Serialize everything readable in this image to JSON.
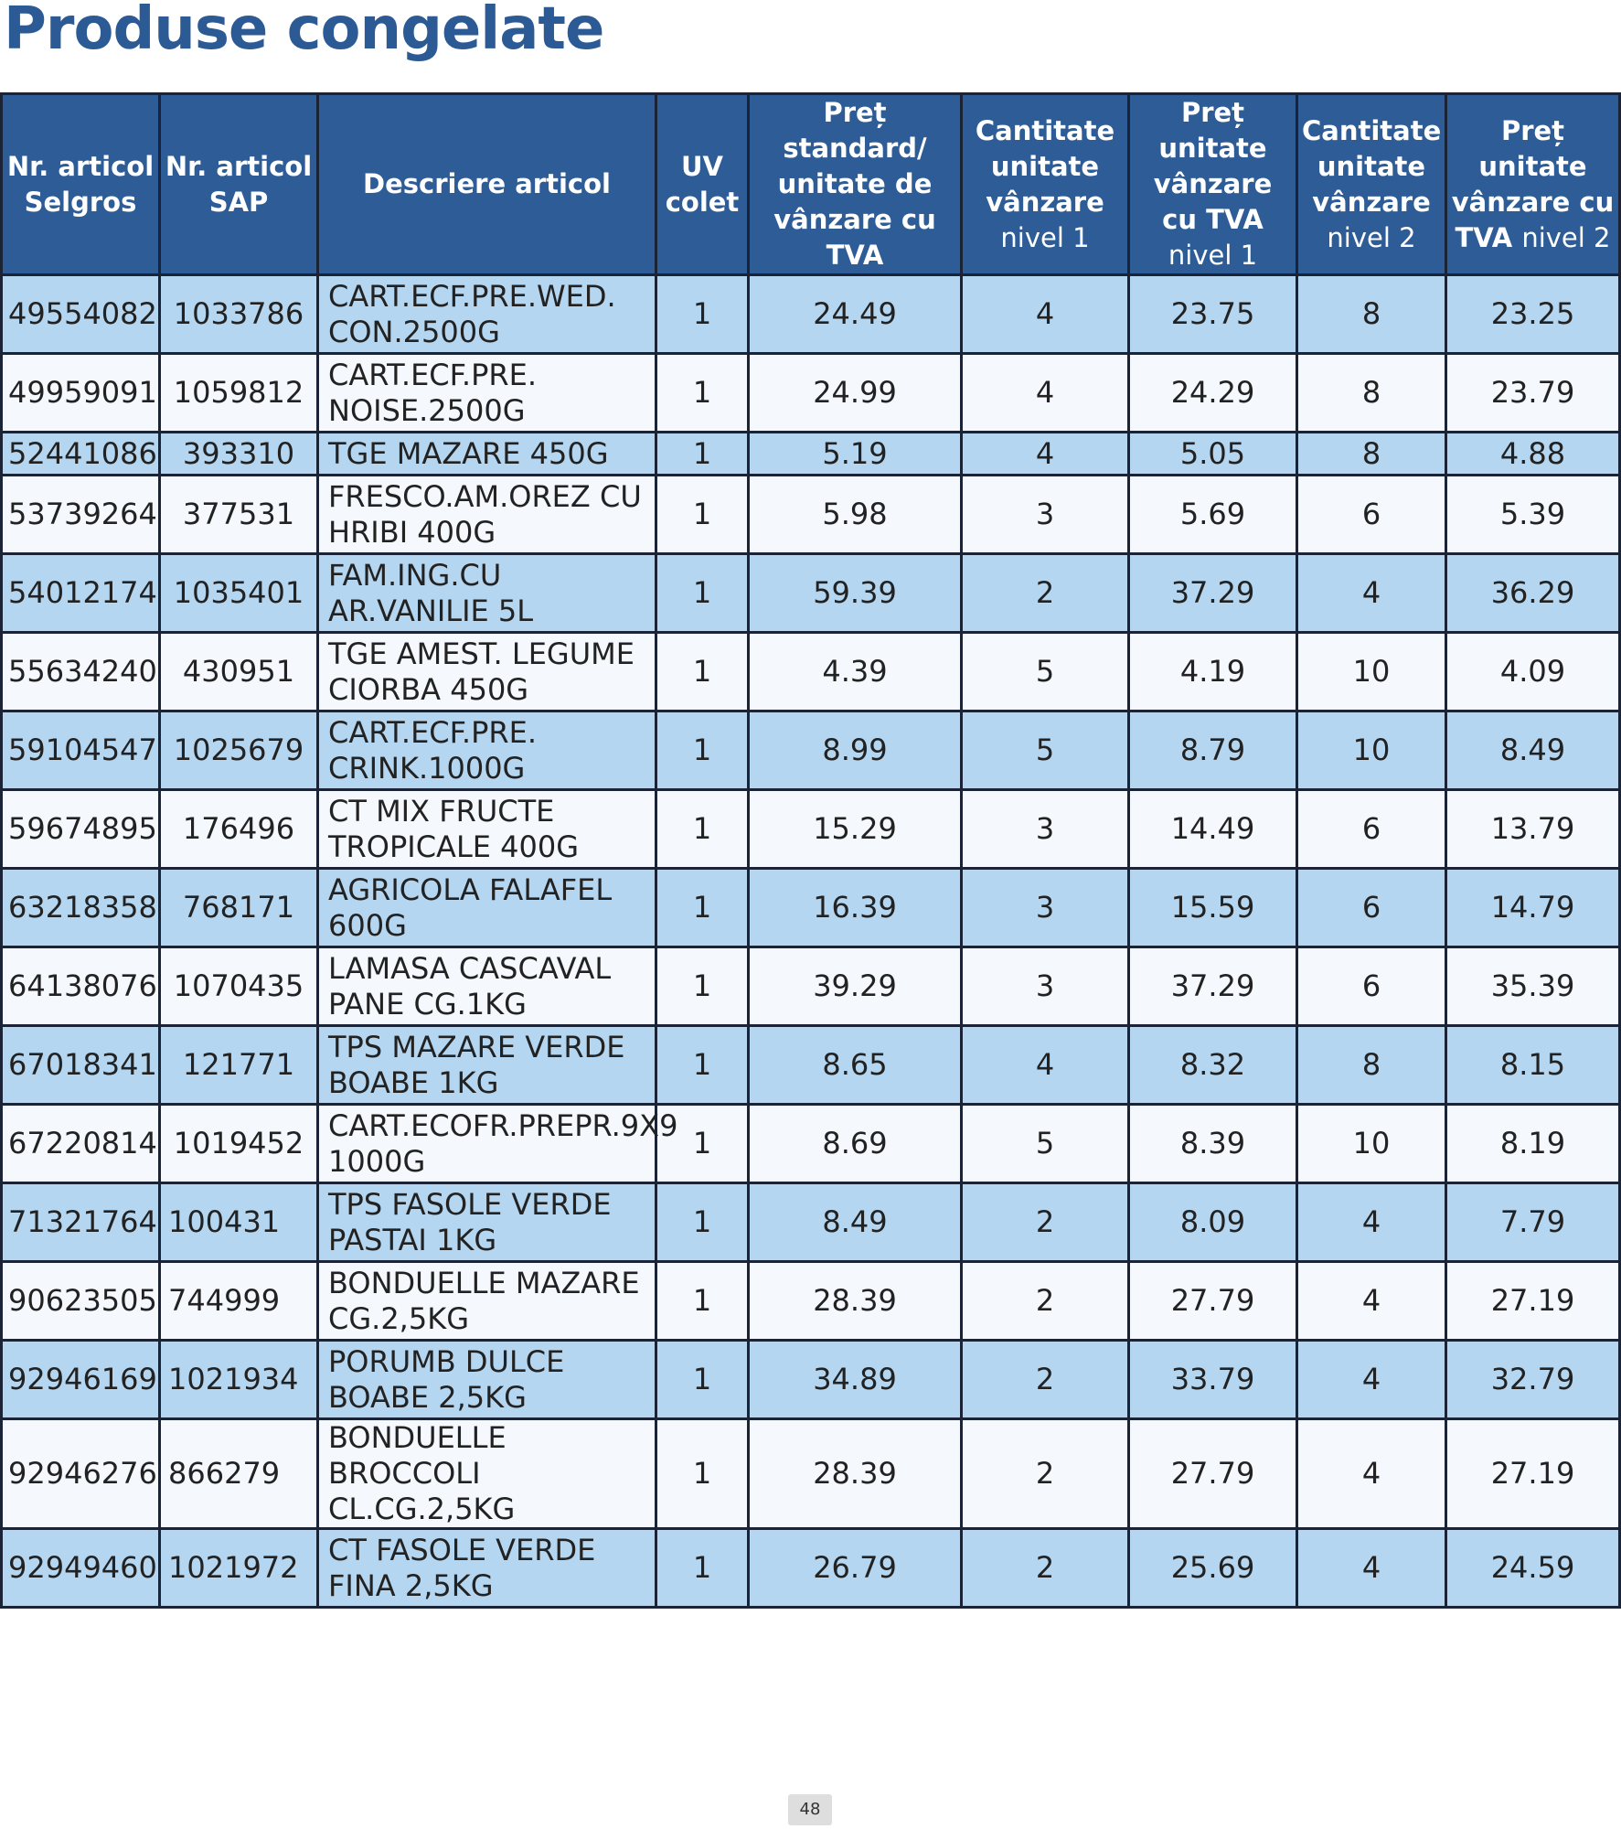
{
  "page": {
    "title": "Produse congelate",
    "page_number": "48"
  },
  "table": {
    "headers": [
      {
        "line1": "Nr. articol Selgros",
        "line2": ""
      },
      {
        "line1": "Nr. articol SAP",
        "line2": ""
      },
      {
        "line1": "Descriere articol",
        "line2": ""
      },
      {
        "line1": "UV colet",
        "line2": ""
      },
      {
        "line1": "Preț standard/ unitate de vânzare cu TVA",
        "line2": ""
      },
      {
        "line1": "Cantitate unitate vânzare",
        "line2": "nivel 1"
      },
      {
        "line1": "Preț unitate vânzare cu TVA",
        "line2": "nivel 1"
      },
      {
        "line1": "Cantitate unitate vânzare",
        "line2": "nivel 2"
      },
      {
        "line1": "Preț unitate vânzare cu TVA",
        "line2": "nivel 2"
      }
    ],
    "rows": [
      [
        "49554082",
        "1033786",
        "CART.ECF.PRE.WED. CON.2500G",
        "1",
        "24.49",
        "4",
        "23.75",
        "8",
        "23.25"
      ],
      [
        "49959091",
        "1059812",
        "CART.ECF.PRE. NOISE.2500G",
        "1",
        "24.99",
        "4",
        "24.29",
        "8",
        "23.79"
      ],
      [
        "52441086",
        "393310",
        "TGE MAZARE 450G",
        "1",
        "5.19",
        "4",
        "5.05",
        "8",
        "4.88"
      ],
      [
        "53739264",
        "377531",
        "FRESCO.AM.OREZ CU HRIBI 400G",
        "1",
        "5.98",
        "3",
        "5.69",
        "6",
        "5.39"
      ],
      [
        "54012174",
        "1035401",
        "FAM.ING.CU AR.VANILIE 5L",
        "1",
        "59.39",
        "2",
        "37.29",
        "4",
        "36.29"
      ],
      [
        "55634240",
        "430951",
        "TGE AMEST. LEGUME CIORBA 450G",
        "1",
        "4.39",
        "5",
        "4.19",
        "10",
        "4.09"
      ],
      [
        "59104547",
        "1025679",
        "CART.ECF.PRE. CRINK.1000G",
        "1",
        "8.99",
        "5",
        "8.79",
        "10",
        "8.49"
      ],
      [
        "59674895",
        "176496",
        "CT MIX FRUCTE TROPICALE 400G",
        "1",
        "15.29",
        "3",
        "14.49",
        "6",
        "13.79"
      ],
      [
        "63218358",
        "768171",
        "AGRICOLA FALAFEL 600G",
        "1",
        "16.39",
        "3",
        "15.59",
        "6",
        "14.79"
      ],
      [
        "64138076",
        "1070435",
        "LAMASA CASCAVAL PANE CG.1KG",
        "1",
        "39.29",
        "3",
        "37.29",
        "6",
        "35.39"
      ],
      [
        "67018341",
        "121771",
        "TPS MAZARE VERDE BOABE 1KG",
        "1",
        "8.65",
        "4",
        "8.32",
        "8",
        "8.15"
      ],
      [
        "67220814",
        "1019452",
        "CART.ECOFR.PREPR.9X9 1000G",
        "1",
        "8.69",
        "5",
        "8.39",
        "10",
        "8.19"
      ],
      [
        "71321764",
        "100431",
        "TPS FASOLE VERDE PASTAI 1KG",
        "1",
        "8.49",
        "2",
        "8.09",
        "4",
        "7.79"
      ],
      [
        "90623505",
        "744999",
        "BONDUELLE MAZARE CG.2,5KG",
        "1",
        "28.39",
        "2",
        "27.79",
        "4",
        "27.19"
      ],
      [
        "92946169",
        "1021934",
        "PORUMB DULCE BOABE 2,5KG",
        "1",
        "34.89",
        "2",
        "33.79",
        "4",
        "32.79"
      ],
      [
        "92946276",
        "866279",
        "BONDUELLE BROCCOLI CL.CG.2,5KG",
        "1",
        "28.39",
        "2",
        "27.79",
        "4",
        "27.19"
      ],
      [
        "92949460",
        "1021972",
        "CT FASOLE VERDE FINA 2,5KG",
        "1",
        "26.79",
        "2",
        "25.69",
        "4",
        "24.59"
      ]
    ]
  }
}
